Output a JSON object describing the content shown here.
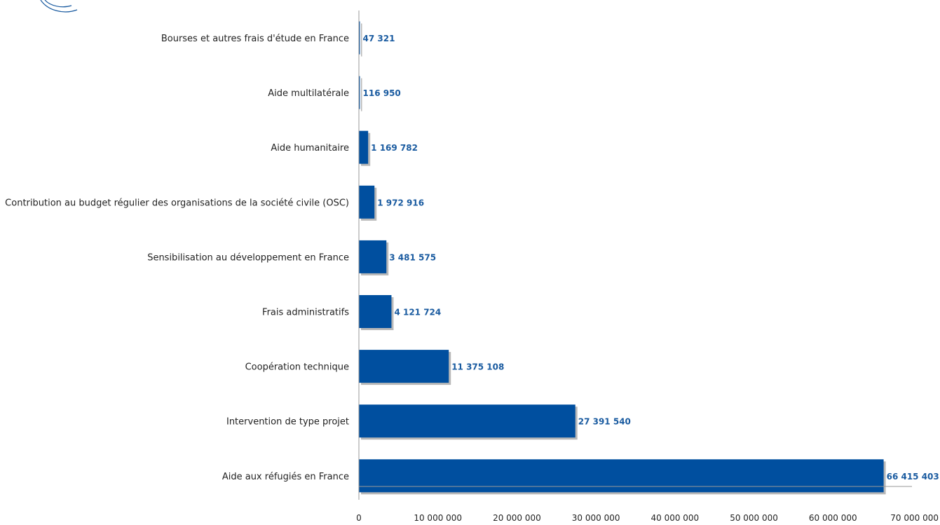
{
  "chart_data": {
    "type": "bar",
    "orientation": "horizontal",
    "bar_color": "#004f9f",
    "value_label_color": "#1a5ba0",
    "categories": [
      "Bourses et autres frais d'étude en France",
      "Aide multilatérale",
      "Aide humanitaire",
      "Contribution au budget régulier des organisations de la société civile (OSC)",
      "Sensibilisation au développement en France",
      "Frais administratifs",
      "Coopération technique",
      "Intervention de type projet",
      "Aide aux réfugiés en France"
    ],
    "values": [
      47321,
      116950,
      1169782,
      1972916,
      3481575,
      4121724,
      11375108,
      27391540,
      66415403
    ],
    "value_labels": [
      "47 321",
      "116 950",
      "1 169 782",
      "1 972 916",
      "3 481 575",
      "4 121 724",
      "11 375 108",
      "27 391 540",
      "66 415 403"
    ],
    "xlim": [
      0,
      70000000
    ],
    "x_ticks": [
      0,
      10000000,
      20000000,
      30000000,
      40000000,
      50000000,
      60000000,
      70000000
    ],
    "x_tick_labels": [
      "0",
      "10 000 000",
      "20 000 000",
      "30 000 000",
      "40 000 000",
      "50 000 000",
      "60 000 000",
      "70 000 000"
    ],
    "title": "",
    "xlabel": "",
    "ylabel": "",
    "grid": false,
    "legend": "none"
  }
}
